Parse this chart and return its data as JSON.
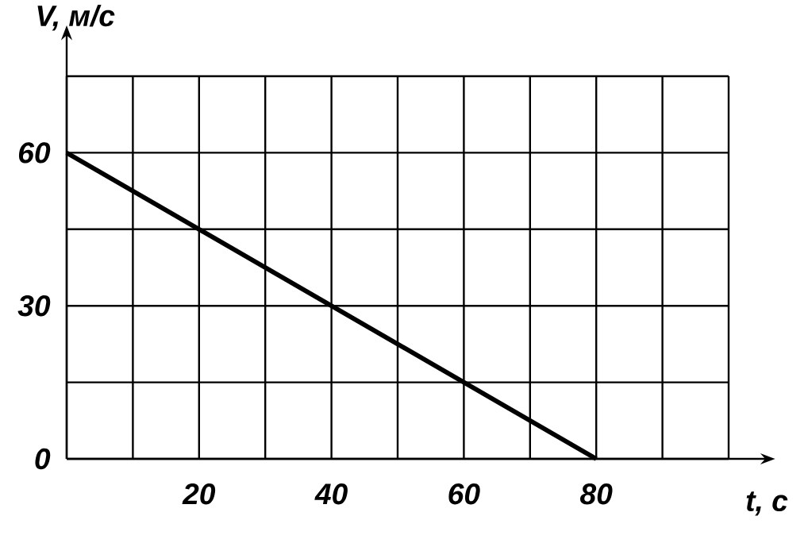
{
  "chart_data": {
    "type": "line",
    "xlabel": "t, с",
    "ylabel": "V, м/с",
    "x": [
      0,
      80
    ],
    "values": [
      60,
      0
    ],
    "color": "#000000",
    "xlim": [
      0,
      100
    ],
    "ylim": [
      0,
      75
    ],
    "xticks": [
      {
        "value": 0,
        "label": null
      },
      {
        "value": 10,
        "label": null
      },
      20,
      {
        "value": 30,
        "label": null
      },
      40,
      {
        "value": 50,
        "label": null
      },
      60,
      {
        "value": 70,
        "label": null
      },
      80,
      {
        "value": 90,
        "label": null
      },
      {
        "value": 100,
        "label": null
      }
    ],
    "yticks": [
      0,
      {
        "value": 15,
        "label": null
      },
      30,
      {
        "value": 45,
        "label": null
      },
      60,
      {
        "value": 75,
        "label": null
      }
    ],
    "grid": true,
    "marker": "none",
    "line_style": "solid"
  }
}
